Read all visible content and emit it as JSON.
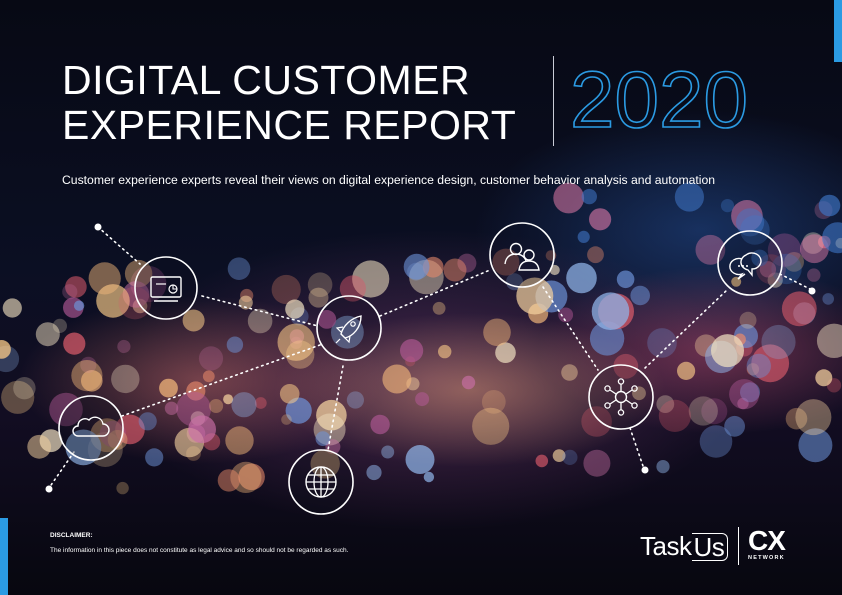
{
  "title": {
    "line1": "DIGITAL CUSTOMER",
    "line2": "EXPERIENCE REPORT"
  },
  "year": "2020",
  "subtitle": "Customer experience experts reveal their views on digital experience design, customer behavior analysis and automation",
  "network_icons": [
    "monitor-chart-icon",
    "rocket-icon",
    "users-icon",
    "chat-bubbles-icon",
    "hub-network-icon",
    "cloud-icon",
    "globe-icon"
  ],
  "disclaimer": {
    "title": "DISCLAIMER:",
    "text": "The information in this piece does not constitute as legal advice and so should not be regarded as such."
  },
  "logos": {
    "taskus_task": "Task",
    "taskus_us": "Us",
    "cx": "CX",
    "cx_network": "NETWORK"
  },
  "colors": {
    "accent": "#2b9be3",
    "background": "#0a0c1a",
    "text": "#ffffff"
  }
}
